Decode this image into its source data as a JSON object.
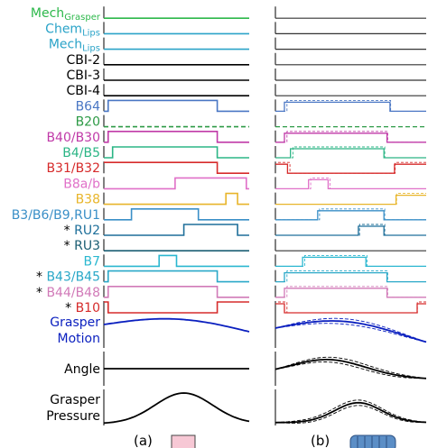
{
  "rows": [
    {
      "key": "mech-grasper",
      "label": "Mech",
      "sub": "Grasper",
      "color": "#2db84b",
      "kind": "flat"
    },
    {
      "key": "chem-lips",
      "label": "Chem",
      "sub": "Lips",
      "color": "#2aa3c8",
      "kind": "flat"
    },
    {
      "key": "mech-lips",
      "label": "Mech",
      "sub": "Lips",
      "color": "#2aa3c8",
      "kind": "flat"
    },
    {
      "key": "cbi-2",
      "label": "CBI-2",
      "sub": "",
      "color": "#000000",
      "kind": "flat"
    },
    {
      "key": "cbi-3",
      "label": "CBI-3",
      "sub": "",
      "color": "#000000",
      "kind": "flat"
    },
    {
      "key": "cbi-4",
      "label": "CBI-4",
      "sub": "",
      "color": "#000000",
      "kind": "flat"
    },
    {
      "key": "b64",
      "label": "B64",
      "sub": "",
      "color": "#4a77c4",
      "kind": "pulse",
      "on": [
        [
          0.03,
          0.78
        ]
      ],
      "on_b": [
        [
          0.06,
          0.76
        ]
      ]
    },
    {
      "key": "b20",
      "label": "B20",
      "sub": "",
      "color": "#2d9a46",
      "kind": "dashed"
    },
    {
      "key": "b40-b30",
      "label": "B40/B30",
      "sub": "",
      "color": "#c03aa8",
      "kind": "pulse",
      "on": [
        [
          0.03,
          0.78
        ]
      ],
      "on_b": [
        [
          0.06,
          0.74
        ]
      ]
    },
    {
      "key": "b4-b5",
      "label": "B4/B5",
      "sub": "",
      "color": "#2bb585",
      "kind": "pulse",
      "on": [
        [
          0.06,
          0.78
        ]
      ],
      "on_b": [
        [
          0.1,
          0.72
        ]
      ]
    },
    {
      "key": "b31-b32",
      "label": "B31/B32",
      "sub": "",
      "color": "#d62b2b",
      "kind": "pulse",
      "on": [
        [
          0.0,
          0.78
        ]
      ],
      "on_b": [
        [
          0.0,
          0.08
        ],
        [
          0.79,
          1.0
        ]
      ]
    },
    {
      "key": "b8a-b",
      "label": "B8a/b",
      "sub": "",
      "color": "#e070c8",
      "kind": "pulse",
      "on": [
        [
          0.49,
          0.98
        ]
      ],
      "on_b": [
        [
          0.22,
          0.35
        ]
      ]
    },
    {
      "key": "b38",
      "label": "B38",
      "sub": "",
      "color": "#e8b52a",
      "kind": "pulse",
      "on": [
        [
          0.84,
          0.92
        ]
      ],
      "on_b": [
        [
          0.8,
          1.0
        ]
      ]
    },
    {
      "key": "b3-b6-b9-ru1",
      "label": "B3/B6/B9,RU1",
      "sub": "",
      "color": "#3a8fc7",
      "kind": "pulse",
      "on": [
        [
          0.19,
          0.65
        ]
      ],
      "on_b": [
        [
          0.28,
          0.72
        ]
      ]
    },
    {
      "key": "ru2",
      "label": "RU2",
      "sub": "",
      "color": "#1e6f9a",
      "kind": "pulse",
      "on": [
        [
          0.55,
          0.92
        ]
      ],
      "on_b": [
        [
          0.55,
          0.72
        ]
      ],
      "star": true
    },
    {
      "key": "ru3",
      "label": "RU3",
      "sub": "",
      "color": "#1b5e73",
      "kind": "flat",
      "star": true
    },
    {
      "key": "b7",
      "label": "B7",
      "sub": "",
      "color": "#2bb7d0",
      "kind": "pulse",
      "on": [
        [
          0.38,
          0.5
        ]
      ],
      "on_b": [
        [
          0.18,
          0.6
        ]
      ]
    },
    {
      "key": "b43-b45",
      "label": "B43/B45",
      "sub": "",
      "color": "#2aa8c8",
      "kind": "pulse",
      "on": [
        [
          0.03,
          0.78
        ]
      ],
      "on_b": [
        [
          0.06,
          0.74
        ]
      ],
      "star": true
    },
    {
      "key": "b44-b48",
      "label": "B44/B48",
      "sub": "",
      "color": "#d17ab8",
      "kind": "pulse",
      "on": [
        [
          0.03,
          0.78
        ]
      ],
      "on_b": [
        [
          0.06,
          0.74
        ]
      ],
      "star": true
    },
    {
      "key": "b10",
      "label": "B10",
      "sub": "",
      "color": "#d62b2b",
      "kind": "pulse",
      "on": [
        [
          0.0,
          0.03
        ],
        [
          0.78,
          1.0
        ]
      ],
      "on_b": [
        [
          0.0,
          0.06
        ],
        [
          0.94,
          1.0
        ]
      ],
      "star": true
    }
  ],
  "analog": [
    {
      "key": "grasper-motion",
      "lines": [
        "Grasper",
        "Motion"
      ],
      "color": "#0a1fbf"
    },
    {
      "key": "angle",
      "lines": [
        "Angle"
      ],
      "color": "#000000"
    },
    {
      "key": "grasper-pressure",
      "lines": [
        "Grasper",
        "Pressure"
      ],
      "color": "#000000"
    }
  ],
  "captions": {
    "a": "(a)",
    "b": "(b)"
  },
  "icon_colors": {
    "a": "#f7c8d5",
    "b": "#5b8ec6"
  }
}
